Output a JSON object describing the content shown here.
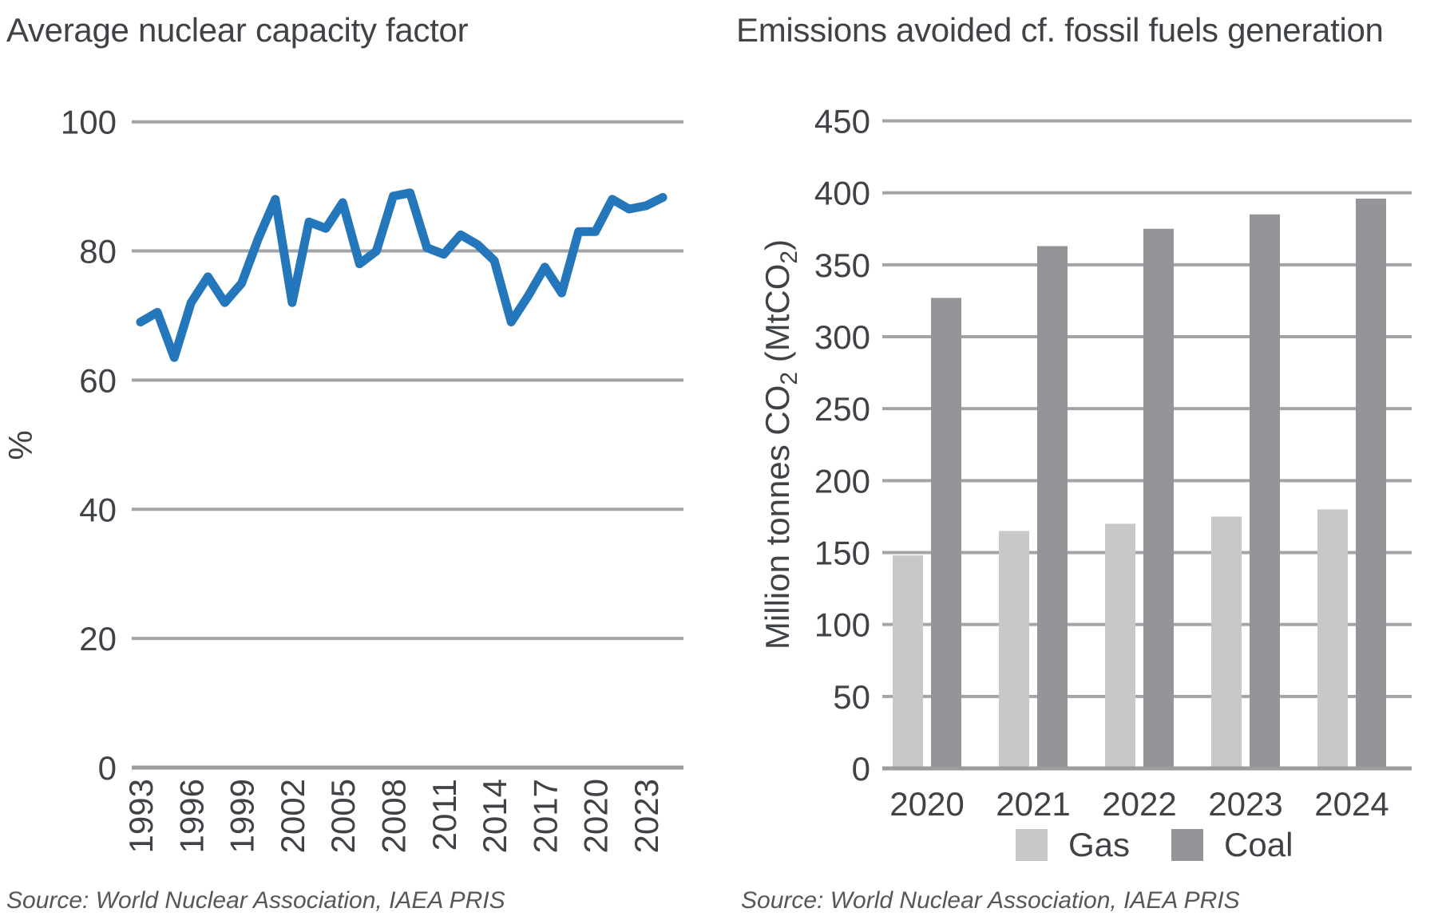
{
  "chart_data": [
    {
      "type": "line",
      "title": "Average nuclear capacity factor",
      "ylabel": "%",
      "x": [
        1993,
        1994,
        1995,
        1996,
        1997,
        1998,
        1999,
        2000,
        2001,
        2002,
        2003,
        2004,
        2005,
        2006,
        2007,
        2008,
        2009,
        2010,
        2011,
        2012,
        2013,
        2014,
        2015,
        2016,
        2017,
        2018,
        2019,
        2020,
        2021,
        2022,
        2023,
        2024
      ],
      "values": [
        69,
        70.5,
        63.5,
        72,
        76,
        72,
        75,
        82,
        88,
        72,
        84.5,
        83.5,
        87.5,
        78,
        80,
        88.5,
        89,
        80.5,
        79.5,
        82.5,
        81,
        78.5,
        69,
        73,
        77.5,
        73.5,
        83,
        83,
        88,
        86.5,
        87,
        88.3
      ],
      "x_tick_labels": [
        "1993",
        "1996",
        "1999",
        "2002",
        "2005",
        "2008",
        "2011",
        "2014",
        "2017",
        "2020",
        "2023"
      ],
      "y_ticks": [
        0,
        20,
        40,
        60,
        80,
        100
      ],
      "ylim": [
        0,
        100
      ],
      "grid": true,
      "line_color": "#2477bb",
      "source": "Source: World Nuclear Association, IAEA PRIS"
    },
    {
      "type": "bar",
      "title": "Emissions avoided cf. fossil fuels generation",
      "ylabel": "Million tonnes CO2 (MtCO2)",
      "ylabel_parts": [
        {
          "t": "Million tonnes CO"
        },
        {
          "t": "2",
          "sub": true
        },
        {
          "t": " (MtCO"
        },
        {
          "t": "2",
          "sub": true
        },
        {
          "t": ")"
        }
      ],
      "categories": [
        "2020",
        "2021",
        "2022",
        "2023",
        "2024"
      ],
      "series": [
        {
          "name": "Gas",
          "color": "#c7c8ca",
          "values": [
            148,
            165,
            170,
            175,
            180
          ]
        },
        {
          "name": "Coal",
          "color": "#939598",
          "values": [
            327,
            363,
            375,
            385,
            396
          ]
        }
      ],
      "y_ticks": [
        0,
        50,
        100,
        150,
        200,
        250,
        300,
        350,
        400,
        450
      ],
      "ylim": [
        0,
        450
      ],
      "grid": true,
      "legend_position": "bottom",
      "source": "Source: World Nuclear Association, IAEA PRIS"
    }
  ],
  "colors": {
    "gridline": "#a2a4a6",
    "axis_line": "#9a9c9e",
    "text": "#3f4347",
    "source_text": "#56575a",
    "line_blue": "#2477bb",
    "gas_gray": "#c7c8ca",
    "coal_gray": "#939598"
  }
}
